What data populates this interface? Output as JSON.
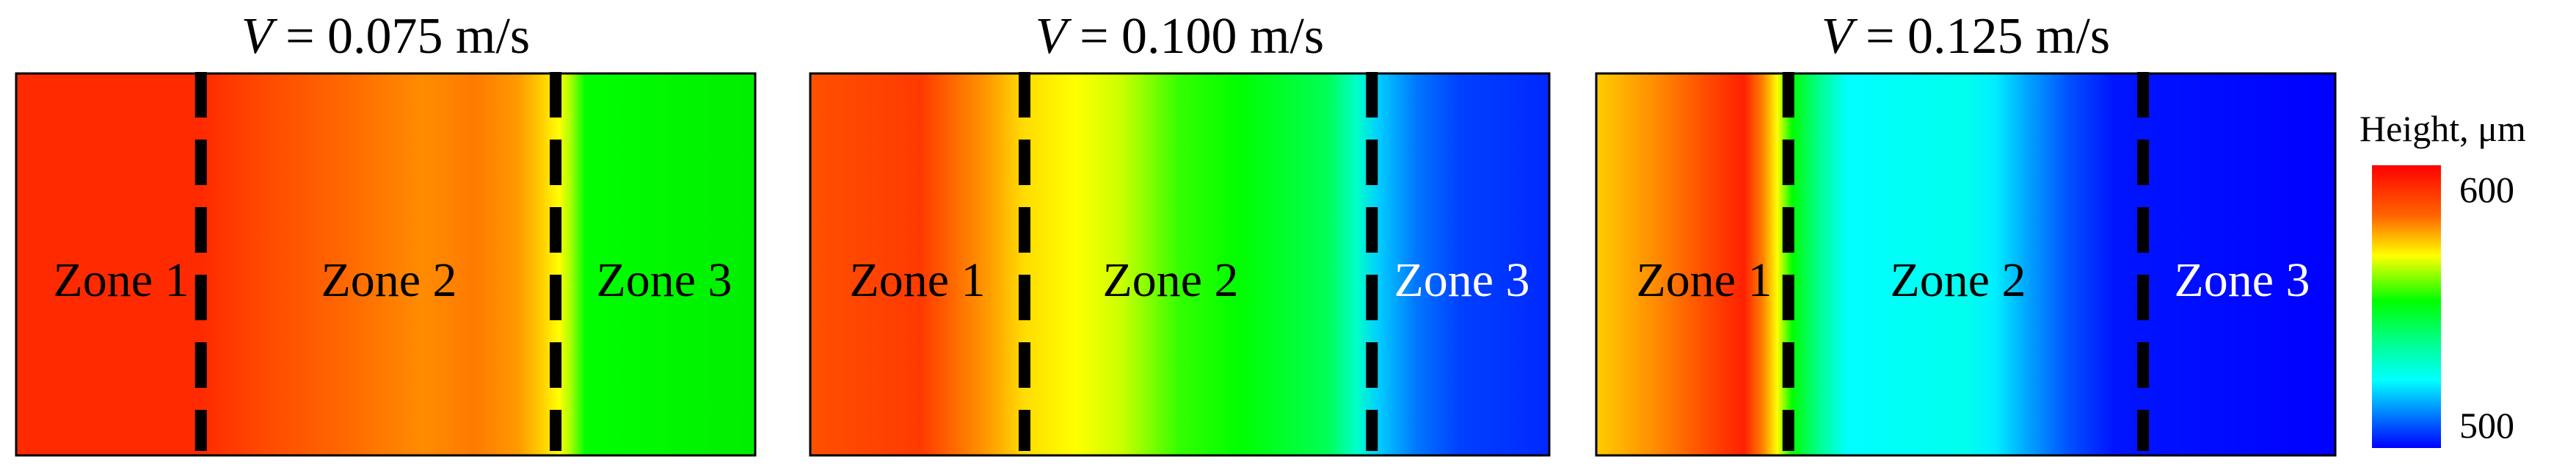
{
  "chart_data": [
    {
      "type": "heatmap",
      "title_var": "V",
      "title_rest": " = 0.075 m/s",
      "zones": [
        {
          "label": "Zone 1",
          "color": "#000000"
        },
        {
          "label": "Zone 2",
          "color": "#000000"
        },
        {
          "label": "Zone 3",
          "color": "#000000"
        }
      ],
      "boundaries": [
        0.25,
        0.73
      ],
      "stops": [
        {
          "pos": 0.0,
          "color": "#ff2a00"
        },
        {
          "pos": 0.25,
          "color": "#ff2a00"
        },
        {
          "pos": 0.33,
          "color": "#ff4800"
        },
        {
          "pos": 0.45,
          "color": "#ff6a00"
        },
        {
          "pos": 0.55,
          "color": "#ff8c00"
        },
        {
          "pos": 0.62,
          "color": "#ff7a00"
        },
        {
          "pos": 0.68,
          "color": "#ff9a00"
        },
        {
          "pos": 0.71,
          "color": "#ffcc00"
        },
        {
          "pos": 0.735,
          "color": "#ffff00"
        },
        {
          "pos": 0.75,
          "color": "#aaff00"
        },
        {
          "pos": 0.77,
          "color": "#00ff00"
        },
        {
          "pos": 1.0,
          "color": "#00ee00"
        }
      ]
    },
    {
      "type": "heatmap",
      "title_var": "V",
      "title_rest": " = 0.100 m/s",
      "zones": [
        {
          "label": "Zone 1",
          "color": "#000000"
        },
        {
          "label": "Zone 2",
          "color": "#000000"
        },
        {
          "label": "Zone 3",
          "color": "#ffffff"
        }
      ],
      "boundaries": [
        0.29,
        0.76
      ],
      "stops": [
        {
          "pos": 0.0,
          "color": "#ff5000"
        },
        {
          "pos": 0.15,
          "color": "#ff3a00"
        },
        {
          "pos": 0.24,
          "color": "#ff9a00"
        },
        {
          "pos": 0.29,
          "color": "#ffdd00"
        },
        {
          "pos": 0.36,
          "color": "#ffff00"
        },
        {
          "pos": 0.42,
          "color": "#ccff00"
        },
        {
          "pos": 0.5,
          "color": "#33ff00"
        },
        {
          "pos": 0.58,
          "color": "#00ff00"
        },
        {
          "pos": 0.7,
          "color": "#00ff55"
        },
        {
          "pos": 0.74,
          "color": "#00ffcc"
        },
        {
          "pos": 0.77,
          "color": "#00ccff"
        },
        {
          "pos": 0.82,
          "color": "#0077ff"
        },
        {
          "pos": 0.88,
          "color": "#0040ff"
        },
        {
          "pos": 1.0,
          "color": "#0028ff"
        }
      ]
    },
    {
      "type": "heatmap",
      "title_var": "V",
      "title_rest": " = 0.125 m/s",
      "zones": [
        {
          "label": "Zone 1",
          "color": "#000000"
        },
        {
          "label": "Zone 2",
          "color": "#000000"
        },
        {
          "label": "Zone 3",
          "color": "#ffffff"
        }
      ],
      "boundaries": [
        0.26,
        0.74
      ],
      "stops": [
        {
          "pos": 0.0,
          "color": "#ffcc00"
        },
        {
          "pos": 0.08,
          "color": "#ff8c00"
        },
        {
          "pos": 0.15,
          "color": "#ff4a00"
        },
        {
          "pos": 0.2,
          "color": "#ff2000"
        },
        {
          "pos": 0.225,
          "color": "#ff8000"
        },
        {
          "pos": 0.245,
          "color": "#ffff00"
        },
        {
          "pos": 0.265,
          "color": "#00ff00"
        },
        {
          "pos": 0.3,
          "color": "#00ff88"
        },
        {
          "pos": 0.34,
          "color": "#00ffff"
        },
        {
          "pos": 0.5,
          "color": "#00ffee"
        },
        {
          "pos": 0.54,
          "color": "#00eeff"
        },
        {
          "pos": 0.58,
          "color": "#00aaff"
        },
        {
          "pos": 0.64,
          "color": "#0050ff"
        },
        {
          "pos": 0.7,
          "color": "#0015ff"
        },
        {
          "pos": 1.0,
          "color": "#0000ff"
        }
      ]
    }
  ],
  "colorbar": {
    "title": "Height, μm",
    "ticks": [
      {
        "label": "600",
        "value": 600
      },
      {
        "label": "500",
        "value": 500
      }
    ],
    "range": [
      490,
      610
    ],
    "stops": [
      {
        "pos": 0.0,
        "color": "#ff0000"
      },
      {
        "pos": 0.18,
        "color": "#ff6600"
      },
      {
        "pos": 0.32,
        "color": "#ffff00"
      },
      {
        "pos": 0.48,
        "color": "#00ff00"
      },
      {
        "pos": 0.64,
        "color": "#00ff99"
      },
      {
        "pos": 0.76,
        "color": "#00ffff"
      },
      {
        "pos": 0.88,
        "color": "#0080ff"
      },
      {
        "pos": 1.0,
        "color": "#0000ff"
      }
    ]
  }
}
